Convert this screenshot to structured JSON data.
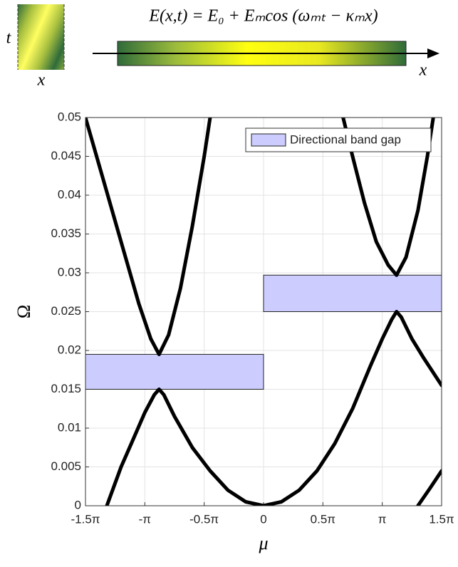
{
  "schematic": {
    "equation": "E(x,t) = E₀ + Eₘcos (ωₘₜ − κₘx)",
    "t_label": "t",
    "x_label": "x",
    "axis_label": "x"
  },
  "chart_data": {
    "type": "line",
    "xlabel": "μ",
    "ylabel": "Ω",
    "xlim": [
      -1.5,
      1.5
    ],
    "xticks": [
      {
        "value": -1.5,
        "label": "-1.5π"
      },
      {
        "value": -1,
        "label": "-π"
      },
      {
        "value": -0.5,
        "label": "-0.5π"
      },
      0,
      {
        "value": 0.5,
        "label": "0.5π"
      },
      {
        "value": 1,
        "label": "π"
      },
      {
        "value": 1.5,
        "label": "1.5π"
      }
    ],
    "ylim": [
      0,
      0.05
    ],
    "yticks": [
      0,
      0.005,
      0.01,
      0.015,
      0.02,
      0.025,
      0.03,
      0.035,
      0.04,
      0.045,
      0.05
    ],
    "grid": true,
    "series": [
      {
        "color": "#000000",
        "x": [
          -1.32,
          -1.2,
          -1.1,
          -1.0,
          -0.92,
          -0.88,
          -0.84,
          -0.75,
          -0.6,
          -0.45,
          -0.3,
          -0.15,
          0,
          0.15,
          0.3,
          0.45,
          0.6,
          0.75,
          0.9,
          1.0,
          1.08,
          1.12,
          1.16,
          1.25,
          1.35,
          1.5
        ],
        "values": [
          0,
          0.005,
          0.0085,
          0.012,
          0.0143,
          0.015,
          0.0143,
          0.0115,
          0.0075,
          0.0045,
          0.002,
          0.0005,
          0,
          0.0005,
          0.002,
          0.0045,
          0.008,
          0.0125,
          0.018,
          0.0215,
          0.024,
          0.025,
          0.0243,
          0.0215,
          0.019,
          0.0155
        ]
      },
      {
        "color": "#000000",
        "x": [
          -1.5,
          -1.35,
          -1.2,
          -1.05,
          -0.95,
          -0.88,
          -0.8,
          -0.7,
          -0.6,
          -0.5,
          -0.45
        ],
        "values": [
          0.05,
          0.042,
          0.034,
          0.026,
          0.0215,
          0.0195,
          0.022,
          0.028,
          0.036,
          0.045,
          0.05
        ]
      },
      {
        "color": "#000000",
        "x": [
          0.67,
          0.75,
          0.85,
          0.95,
          1.05,
          1.12,
          1.2,
          1.3,
          1.38,
          1.43
        ],
        "values": [
          0.05,
          0.045,
          0.039,
          0.034,
          0.031,
          0.0297,
          0.032,
          0.038,
          0.045,
          0.05
        ]
      },
      {
        "color": "#000000",
        "x": [
          1.3,
          1.4,
          1.5
        ],
        "values": [
          0,
          0.0022,
          0.0045
        ]
      }
    ],
    "band_gaps": {
      "name": "Directional band gap",
      "color": "#ccccff",
      "regions": [
        {
          "xrange": [
            -1.5,
            0
          ],
          "yrange": [
            0.015,
            0.0195
          ]
        },
        {
          "xrange": [
            0,
            1.5
          ],
          "yrange": [
            0.025,
            0.0297
          ]
        }
      ]
    },
    "legend_position": "upper right"
  }
}
